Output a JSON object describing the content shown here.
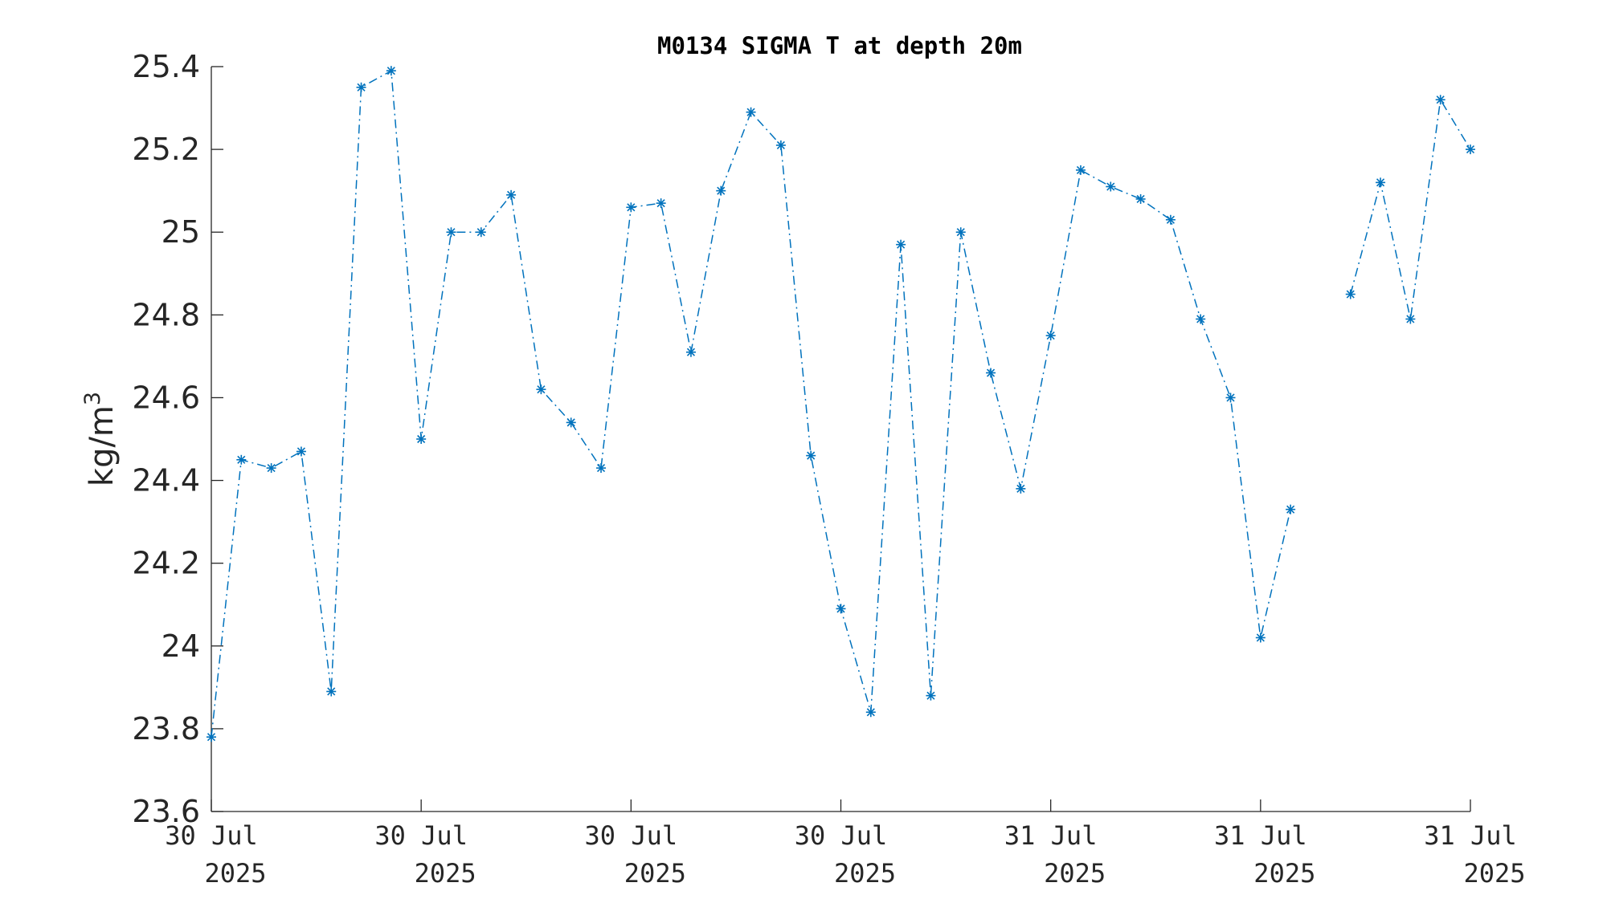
{
  "chart_data": {
    "type": "line",
    "title": "M0134 SIGMA T at depth 20m",
    "ylabel": "kg/m",
    "ylabel_superscript": "3",
    "xlabel": "",
    "ylim": [
      23.6,
      25.4
    ],
    "xlim": [
      0,
      42
    ],
    "y_ticks": [
      "23.6",
      "23.8",
      "24",
      "24.2",
      "24.4",
      "24.6",
      "24.8",
      "25",
      "25.2",
      "25.4"
    ],
    "x_ticks": [
      {
        "x": 0,
        "line1": "30 Jul",
        "line2": "2025"
      },
      {
        "x": 7,
        "line1": "30 Jul",
        "line2": "2025"
      },
      {
        "x": 14,
        "line1": "30 Jul",
        "line2": "2025"
      },
      {
        "x": 21,
        "line1": "30 Jul",
        "line2": "2025"
      },
      {
        "x": 28,
        "line1": "31 Jul",
        "line2": "2025"
      },
      {
        "x": 35,
        "line1": "31 Jul",
        "line2": "2025"
      },
      {
        "x": 42,
        "line1": "31 Jul",
        "line2": "2025"
      }
    ],
    "grid": false,
    "line_style": "dash-dot",
    "marker": "asterisk",
    "color": "#0072BD",
    "series": [
      {
        "x": [
          0,
          1,
          2,
          3,
          4,
          5,
          6,
          7,
          8,
          9,
          10,
          11,
          12,
          13,
          14,
          15,
          16,
          17,
          18,
          19,
          20,
          21,
          22,
          23,
          24,
          25,
          26,
          27,
          28,
          29,
          30,
          31,
          32,
          33,
          34,
          35,
          36,
          37,
          38,
          39,
          40,
          41,
          42
        ],
        "values": [
          23.78,
          24.45,
          24.43,
          24.47,
          23.89,
          25.35,
          25.39,
          24.5,
          25.0,
          25.0,
          25.09,
          24.62,
          24.54,
          24.43,
          25.06,
          25.07,
          24.71,
          25.1,
          25.29,
          25.21,
          24.46,
          24.09,
          23.84,
          24.97,
          23.88,
          25.0,
          24.66,
          24.38,
          24.75,
          25.15,
          25.11,
          25.08,
          25.03,
          24.79,
          24.6,
          24.02,
          24.33,
          null,
          24.85,
          25.12,
          24.79,
          25.32,
          25.2
        ]
      }
    ]
  }
}
